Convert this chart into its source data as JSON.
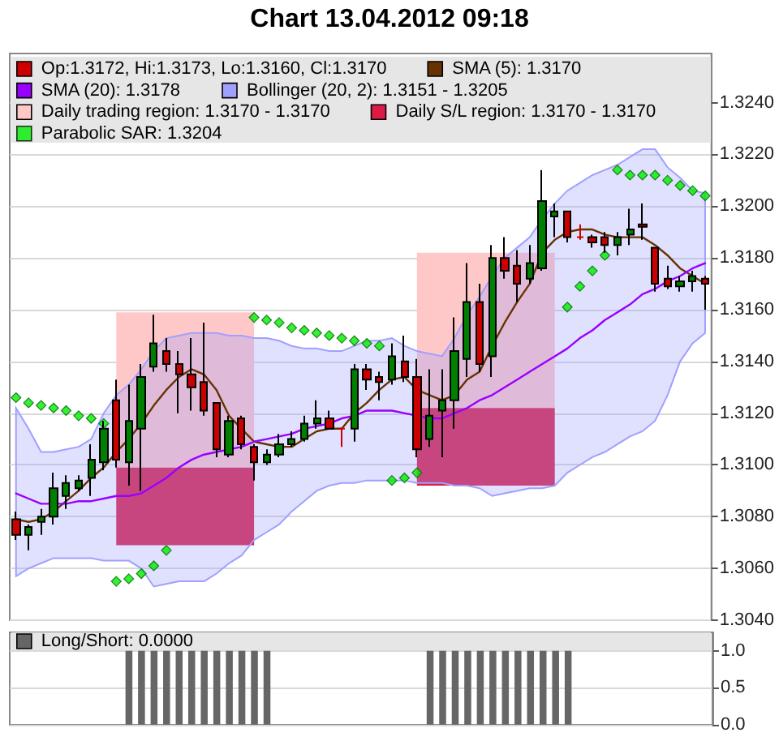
{
  "chart_data": [
    {
      "type": "candlestick",
      "title": "Chart 13.04.2012 09:18",
      "categories": [
        null,
        null,
        null,
        null,
        null,
        null,
        null,
        null,
        null,
        null,
        null,
        null,
        null,
        null,
        null,
        null,
        null,
        null,
        null,
        null,
        null,
        null,
        null,
        null,
        null,
        null,
        null,
        null,
        null,
        null,
        null,
        null,
        null,
        null,
        null,
        null,
        null,
        null,
        null,
        null,
        null,
        null,
        null,
        null,
        null,
        null,
        null,
        null,
        null,
        null,
        null,
        null,
        null,
        null,
        null,
        null
      ],
      "series": [
        {
          "name": "Op:1.3172, Hi:1.3173, Lo:1.3160, Cl:1.3170",
          "type": "candlestick",
          "color": "#cc0000",
          "colors": [
            "#cc0000",
            "#008000",
            "#008000",
            "#008000",
            "#008000",
            "#008000",
            "#008000",
            "#008000",
            "#cc0000",
            "#008000",
            "#008000",
            "#008000",
            "#cc0000",
            "#cc0000",
            "#cc0000",
            "#cc0000",
            "#cc0000",
            "#008000",
            "#cc0000",
            "#cc0000",
            "#008000",
            "#008000",
            "#008000",
            "#008000",
            "#008000",
            "#cc0000",
            "#cc0000",
            "#008000",
            "#cc0000",
            "#cc0000",
            "#008000",
            "#cc0000",
            "#cc0000",
            "#008000",
            "#008000",
            "#008000",
            "#008000",
            "#cc0000",
            "#008000",
            "#cc0000",
            "#cc0000",
            "#008000",
            "#008000",
            "#008000",
            "#cc0000",
            "#cc0000",
            "#cc0000",
            "#cc0000",
            "#008000",
            "#008000",
            "#cc0000",
            "#cc0000",
            "#cc0000",
            "#008000",
            "#008000",
            "#cc0000"
          ],
          "ohlc": [
            [
              1.3079,
              1.3082,
              1.3071,
              1.3073
            ],
            [
              1.3073,
              1.3077,
              1.3067,
              1.3076
            ],
            [
              1.3078,
              1.3083,
              1.3073,
              1.308
            ],
            [
              1.308,
              1.3097,
              1.3077,
              1.3091
            ],
            [
              1.3088,
              1.3096,
              1.3083,
              1.3093
            ],
            [
              1.3091,
              1.3096,
              1.309,
              1.3094
            ],
            [
              1.3095,
              1.3108,
              1.3088,
              1.3102
            ],
            [
              1.3101,
              1.3117,
              1.3098,
              1.3114
            ],
            [
              1.3125,
              1.3133,
              1.3099,
              1.3102
            ],
            [
              1.3101,
              1.3131,
              1.3092,
              1.3117
            ],
            [
              1.3114,
              1.3139,
              1.309,
              1.3134
            ],
            [
              1.3138,
              1.3158,
              1.3136,
              1.3147
            ],
            [
              1.3144,
              1.3149,
              1.3136,
              1.3139
            ],
            [
              1.3139,
              1.3144,
              1.312,
              1.3135
            ],
            [
              1.3135,
              1.3149,
              1.3121,
              1.313
            ],
            [
              1.3132,
              1.3155,
              1.3119,
              1.3121
            ],
            [
              1.3124,
              1.3124,
              1.3103,
              1.3106
            ],
            [
              1.3104,
              1.3119,
              1.3103,
              1.3117
            ],
            [
              1.3118,
              1.3119,
              1.3106,
              1.3108
            ],
            [
              1.3107,
              1.3108,
              1.3094,
              1.3101
            ],
            [
              1.3101,
              1.3106,
              1.31,
              1.3104
            ],
            [
              1.3104,
              1.3112,
              1.3103,
              1.3108
            ],
            [
              1.3108,
              1.3113,
              1.3107,
              1.311
            ],
            [
              1.311,
              1.3119,
              1.3109,
              1.3116
            ],
            [
              1.3116,
              1.3125,
              1.3114,
              1.3118
            ],
            [
              1.3118,
              1.3121,
              1.3114,
              1.3114
            ],
            [
              1.3114,
              1.3114,
              1.3107,
              1.3114
            ],
            [
              1.3114,
              1.3139,
              1.3109,
              1.3137
            ],
            [
              1.3137,
              1.3139,
              1.3129,
              1.3133
            ],
            [
              1.3134,
              1.3136,
              1.3125,
              1.3132
            ],
            [
              1.3133,
              1.3147,
              1.3131,
              1.3142
            ],
            [
              1.314,
              1.315,
              1.3132,
              1.3134
            ],
            [
              1.3134,
              1.3141,
              1.3103,
              1.3106
            ],
            [
              1.311,
              1.3137,
              1.3107,
              1.3119
            ],
            [
              1.3121,
              1.3137,
              1.3103,
              1.3125
            ],
            [
              1.3125,
              1.3157,
              1.3114,
              1.3144
            ],
            [
              1.3141,
              1.3178,
              1.3134,
              1.3163
            ],
            [
              1.3163,
              1.317,
              1.3136,
              1.3139
            ],
            [
              1.3142,
              1.3185,
              1.3134,
              1.318
            ],
            [
              1.318,
              1.3188,
              1.3172,
              1.3175
            ],
            [
              1.3177,
              1.3183,
              1.3163,
              1.317
            ],
            [
              1.3172,
              1.3185,
              1.317,
              1.3178
            ],
            [
              1.3176,
              1.3214,
              1.3175,
              1.3202
            ],
            [
              1.3196,
              1.3201,
              1.3188,
              1.3198
            ],
            [
              1.3198,
              1.3198,
              1.3186,
              1.3188
            ],
            [
              1.3188,
              1.3193,
              1.3187,
              1.3188
            ],
            [
              1.3188,
              1.3189,
              1.3184,
              1.3186
            ],
            [
              1.3188,
              1.319,
              1.3182,
              1.3185
            ],
            [
              1.3185,
              1.319,
              1.3181,
              1.3188
            ],
            [
              1.3189,
              1.3199,
              1.3185,
              1.3191
            ],
            [
              1.3193,
              1.3201,
              1.3187,
              1.3192
            ],
            [
              1.3184,
              1.3184,
              1.3167,
              1.317
            ],
            [
              1.3172,
              1.3177,
              1.3168,
              1.3169
            ],
            [
              1.3169,
              1.3173,
              1.3167,
              1.3171
            ],
            [
              1.3171,
              1.3175,
              1.3167,
              1.3173
            ],
            [
              1.3172,
              1.3173,
              1.316,
              1.317
            ]
          ]
        },
        {
          "name": "SMA (5): 1.3170",
          "type": "line",
          "color": "#663300",
          "values": [
            1.3079,
            1.3078,
            1.3079,
            1.3082,
            1.3086,
            1.309,
            1.3095,
            1.3099,
            1.3105,
            1.311,
            1.3116,
            1.3123,
            1.3129,
            1.3134,
            1.3137,
            1.3135,
            1.3129,
            1.3119,
            1.3114,
            1.3109,
            1.3108,
            1.3107,
            1.3107,
            1.311,
            1.3113,
            1.3114,
            1.3114,
            1.312,
            1.3124,
            1.3129,
            1.3133,
            1.3134,
            1.3129,
            1.3127,
            1.3125,
            1.3127,
            1.3133,
            1.3136,
            1.3146,
            1.3155,
            1.3163,
            1.317,
            1.3182,
            1.3187,
            1.319,
            1.3191,
            1.3191,
            1.3189,
            1.3188,
            1.3188,
            1.3188,
            1.3185,
            1.3181,
            1.3176,
            1.3173,
            1.317
          ]
        },
        {
          "name": "SMA (20): 1.3178",
          "type": "line",
          "color": "#9900ff",
          "values": [
            1.3089,
            1.3087,
            1.3085,
            1.3085,
            1.3085,
            1.3086,
            1.3086,
            1.3087,
            1.3088,
            1.3088,
            1.3089,
            1.3092,
            1.3095,
            1.3099,
            1.3102,
            1.3104,
            1.3105,
            1.3106,
            1.3107,
            1.3109,
            1.311,
            1.3111,
            1.3112,
            1.3114,
            1.3115,
            1.3116,
            1.3118,
            1.3119,
            1.3121,
            1.3121,
            1.3121,
            1.312,
            1.3119,
            1.3118,
            1.3118,
            1.312,
            1.3122,
            1.3125,
            1.3127,
            1.313,
            1.3133,
            1.3136,
            1.3139,
            1.3142,
            1.3145,
            1.3149,
            1.3152,
            1.3156,
            1.3159,
            1.3162,
            1.3166,
            1.3168,
            1.3171,
            1.3173,
            1.3176,
            1.3178
          ]
        },
        {
          "name": "Bollinger (20, 2): 1.3151 - 1.3205",
          "type": "area",
          "color": "#a0a0ff",
          "values": [
            null,
            null,
            null,
            null,
            null,
            null,
            null,
            null,
            null,
            null,
            null,
            null,
            null,
            null,
            null,
            null,
            null,
            null,
            null,
            null,
            null,
            null,
            null,
            null,
            null,
            null,
            null,
            null,
            null,
            null,
            null,
            null,
            null,
            null,
            null,
            null,
            null,
            null,
            null,
            null,
            null,
            null,
            null,
            null,
            null,
            null,
            null,
            null,
            null,
            null,
            null,
            null,
            null,
            null,
            null,
            null
          ],
          "upper": [
            1.3122,
            1.3114,
            1.3105,
            1.3105,
            1.3106,
            1.3107,
            1.311,
            1.312,
            1.3127,
            1.3131,
            1.3137,
            1.3144,
            1.3149,
            1.315,
            1.3151,
            1.3151,
            1.3151,
            1.315,
            1.315,
            1.3149,
            1.3149,
            1.3148,
            1.3146,
            1.3145,
            1.3145,
            1.3144,
            1.3144,
            1.3146,
            1.3148,
            1.3148,
            1.3149,
            1.3146,
            1.3144,
            1.3143,
            1.3142,
            1.3149,
            1.3158,
            1.3165,
            1.3173,
            1.318,
            1.3184,
            1.3188,
            1.3195,
            1.3201,
            1.3206,
            1.3209,
            1.3212,
            1.3214,
            1.3216,
            1.3219,
            1.3222,
            1.3222,
            1.3215,
            1.3211,
            1.3206,
            1.3205
          ],
          "lower": [
            1.3057,
            1.306,
            1.3062,
            1.3064,
            1.3064,
            1.3064,
            1.3064,
            1.3063,
            1.3063,
            1.3063,
            1.306,
            1.3053,
            1.3054,
            1.3055,
            1.3055,
            1.3055,
            1.3058,
            1.3062,
            1.3065,
            1.3071,
            1.3074,
            1.3077,
            1.3082,
            1.3086,
            1.309,
            1.3092,
            1.3093,
            1.3093,
            1.3094,
            1.3094,
            1.3094,
            1.3094,
            1.3093,
            1.3093,
            1.3093,
            1.3092,
            1.3092,
            1.3091,
            1.3088,
            1.3089,
            1.309,
            1.3091,
            1.3091,
            1.3092,
            1.3097,
            1.31,
            1.3103,
            1.3105,
            1.3108,
            1.3111,
            1.3113,
            1.3117,
            1.3127,
            1.314,
            1.3147,
            1.3151
          ]
        },
        {
          "name": "Daily trading region: 1.3170 - 1.3170",
          "type": "area",
          "color": "#ffc8c8",
          "values": [
            null,
            null,
            null,
            null,
            null,
            null,
            null,
            null,
            null,
            null,
            null,
            null,
            null,
            null,
            null,
            null,
            null,
            null,
            null,
            null,
            null,
            null,
            null,
            null,
            null,
            null,
            null,
            null,
            null,
            null,
            null,
            null,
            null,
            null,
            null,
            null,
            null,
            null,
            null,
            null,
            null,
            null,
            null,
            null,
            null,
            null,
            null,
            null,
            null,
            null,
            null,
            null,
            null,
            null,
            null,
            null
          ],
          "upper": [
            null,
            null,
            null,
            null,
            null,
            null,
            null,
            null,
            1.3159,
            1.3159,
            1.3159,
            1.3159,
            1.3159,
            1.3159,
            1.3159,
            1.3159,
            1.3159,
            1.3159,
            1.3159,
            1.3159,
            null,
            null,
            null,
            null,
            null,
            null,
            null,
            null,
            null,
            null,
            null,
            null,
            1.3182,
            1.3182,
            1.3182,
            1.3182,
            1.3182,
            1.3182,
            1.3182,
            1.3182,
            1.3182,
            1.3182,
            1.3182,
            1.3182,
            null,
            null,
            null,
            null,
            null,
            null,
            null,
            null,
            null,
            null,
            null,
            null
          ],
          "lower": [
            null,
            null,
            null,
            null,
            null,
            null,
            null,
            null,
            1.3099,
            1.3099,
            1.3099,
            1.3099,
            1.3099,
            1.3099,
            1.3099,
            1.3099,
            1.3099,
            1.3099,
            1.3099,
            1.3099,
            null,
            null,
            null,
            null,
            null,
            null,
            null,
            null,
            null,
            null,
            null,
            null,
            1.3122,
            1.3122,
            1.3122,
            1.3122,
            1.3122,
            1.3122,
            1.3122,
            1.3122,
            1.3122,
            1.3122,
            1.3122,
            1.3122,
            null,
            null,
            null,
            null,
            null,
            null,
            null,
            null,
            null,
            null,
            null,
            null
          ]
        },
        {
          "name": "Daily S/L region: 1.3170 - 1.3170",
          "type": "area",
          "color": "#dc1c44",
          "values": [
            null,
            null,
            null,
            null,
            null,
            null,
            null,
            null,
            null,
            null,
            null,
            null,
            null,
            null,
            null,
            null,
            null,
            null,
            null,
            null,
            null,
            null,
            null,
            null,
            null,
            null,
            null,
            null,
            null,
            null,
            null,
            null,
            null,
            null,
            null,
            null,
            null,
            null,
            null,
            null,
            null,
            null,
            null,
            null,
            null,
            null,
            null,
            null,
            null,
            null,
            null,
            null,
            null,
            null,
            null,
            null
          ],
          "upper": [
            null,
            null,
            null,
            null,
            null,
            null,
            null,
            null,
            1.3099,
            1.3099,
            1.3099,
            1.3099,
            1.3099,
            1.3099,
            1.3099,
            1.3099,
            1.3099,
            1.3099,
            1.3099,
            1.3099,
            null,
            null,
            null,
            null,
            null,
            null,
            null,
            null,
            null,
            null,
            null,
            null,
            1.3122,
            1.3122,
            1.3122,
            1.3122,
            1.3122,
            1.3122,
            1.3122,
            1.3122,
            1.3122,
            1.3122,
            1.3122,
            1.3122,
            null,
            null,
            null,
            null,
            null,
            null,
            null,
            null,
            null,
            null,
            null,
            null
          ],
          "lower": [
            null,
            null,
            null,
            null,
            null,
            null,
            null,
            null,
            1.3069,
            1.3069,
            1.3069,
            1.3069,
            1.3069,
            1.3069,
            1.3069,
            1.3069,
            1.3069,
            1.3069,
            1.3069,
            1.3069,
            null,
            null,
            null,
            null,
            null,
            null,
            null,
            null,
            null,
            null,
            null,
            null,
            1.3092,
            1.3092,
            1.3092,
            1.3092,
            1.3092,
            1.3092,
            1.3092,
            1.3092,
            1.3092,
            1.3092,
            1.3092,
            1.3092,
            null,
            null,
            null,
            null,
            null,
            null,
            null,
            null,
            null,
            null,
            null,
            null
          ]
        },
        {
          "name": "Parabolic SAR: 1.3204",
          "type": "scatter",
          "color": "#00ee00",
          "marker": "diamond",
          "values": [
            1.3126,
            1.3124,
            1.3123,
            1.3122,
            1.3121,
            1.3119,
            1.3118,
            1.3116,
            1.3055,
            1.3056,
            1.3058,
            1.3061,
            1.3067,
            null,
            null,
            null,
            null,
            null,
            null,
            1.3157,
            1.3156,
            1.3155,
            1.3153,
            1.3152,
            1.3151,
            1.315,
            1.3149,
            1.3148,
            1.3147,
            1.3146,
            1.3094,
            1.3095,
            1.3097,
            null,
            null,
            null,
            null,
            null,
            null,
            null,
            null,
            null,
            null,
            null,
            1.3161,
            1.3169,
            1.3175,
            1.3181,
            1.3214,
            1.3212,
            1.3212,
            1.3212,
            1.321,
            1.3208,
            1.3206,
            1.3204
          ]
        }
      ],
      "ylim": [
        1.304,
        1.3259
      ],
      "yticks": [
        {
          "value": 1.304,
          "label": "1.3040"
        },
        {
          "value": 1.306,
          "label": "1.3060"
        },
        {
          "value": 1.308,
          "label": "1.3080"
        },
        {
          "value": 1.31,
          "label": "1.3100"
        },
        {
          "value": 1.312,
          "label": "1.3120"
        },
        {
          "value": 1.314,
          "label": "1.3140"
        },
        {
          "value": 1.316,
          "label": "1.3160"
        },
        {
          "value": 1.318,
          "label": "1.3180"
        },
        {
          "value": 1.32,
          "label": "1.3200"
        },
        {
          "value": 1.322,
          "label": "1.3220"
        },
        {
          "value": 1.324,
          "label": "1.3240"
        }
      ],
      "grid": "y",
      "legend": "top left",
      "tick_labels": "y"
    },
    {
      "type": "bar",
      "categories": [
        null,
        null,
        null,
        null,
        null,
        null,
        null,
        null,
        null,
        null,
        null,
        null,
        null,
        null,
        null,
        null,
        null,
        null,
        null,
        null,
        null,
        null,
        null,
        null,
        null,
        null,
        null,
        null,
        null,
        null,
        null,
        null,
        null,
        null,
        null,
        null,
        null,
        null,
        null,
        null,
        null,
        null,
        null,
        null,
        null,
        null,
        null,
        null,
        null,
        null,
        null,
        null,
        null,
        null,
        null,
        null
      ],
      "series": [
        {
          "name": "Long/Short: 0.0000",
          "color": "#666666",
          "values": [
            0,
            0,
            0,
            0,
            0,
            0,
            0,
            0,
            0,
            1,
            1,
            1,
            1,
            1,
            1,
            1,
            1,
            1,
            1,
            1,
            1,
            0,
            0,
            0,
            0,
            0,
            0,
            0,
            0,
            0,
            0,
            0,
            0,
            1,
            1,
            1,
            1,
            1,
            1,
            1,
            1,
            1,
            1,
            1,
            1,
            0,
            0,
            0,
            0,
            0,
            0,
            0,
            0,
            0,
            0,
            0
          ]
        }
      ],
      "ylim": [
        0,
        1.25
      ],
      "yticks": [
        {
          "value": 0,
          "label": "0.0"
        },
        {
          "value": 0.5,
          "label": "0.5"
        },
        {
          "value": 1,
          "label": "1.0"
        }
      ],
      "grid": "y",
      "legend": "top left",
      "tick_labels": "y"
    }
  ]
}
